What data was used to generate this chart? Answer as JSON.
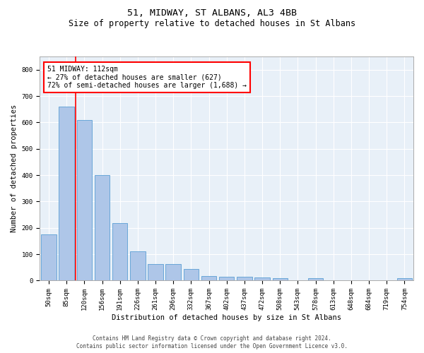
{
  "title": "51, MIDWAY, ST ALBANS, AL3 4BB",
  "subtitle": "Size of property relative to detached houses in St Albans",
  "xlabel": "Distribution of detached houses by size in St Albans",
  "ylabel": "Number of detached properties",
  "footnote1": "Contains HM Land Registry data © Crown copyright and database right 2024.",
  "footnote2": "Contains public sector information licensed under the Open Government Licence v3.0.",
  "bar_labels": [
    "50sqm",
    "85sqm",
    "120sqm",
    "156sqm",
    "191sqm",
    "226sqm",
    "261sqm",
    "296sqm",
    "332sqm",
    "367sqm",
    "402sqm",
    "437sqm",
    "472sqm",
    "508sqm",
    "543sqm",
    "578sqm",
    "613sqm",
    "648sqm",
    "684sqm",
    "719sqm",
    "754sqm"
  ],
  "bar_values": [
    175,
    660,
    610,
    400,
    218,
    110,
    63,
    63,
    43,
    17,
    15,
    15,
    13,
    8,
    0,
    8,
    0,
    0,
    0,
    0,
    8
  ],
  "bar_color": "#aec6e8",
  "bar_edge_color": "#5a9fd4",
  "annotation_text": "51 MIDWAY: 112sqm\n← 27% of detached houses are smaller (627)\n72% of semi-detached houses are larger (1,688) →",
  "annotation_box_color": "white",
  "annotation_border_color": "red",
  "red_line_color": "red",
  "ylim": [
    0,
    850
  ],
  "yticks": [
    0,
    100,
    200,
    300,
    400,
    500,
    600,
    700,
    800
  ],
  "background_color": "#e8f0f8",
  "grid_color": "white",
  "title_fontsize": 9.5,
  "subtitle_fontsize": 8.5,
  "axis_label_fontsize": 7.5,
  "tick_fontsize": 6.5,
  "annotation_fontsize": 7.0,
  "footnote_fontsize": 5.5
}
